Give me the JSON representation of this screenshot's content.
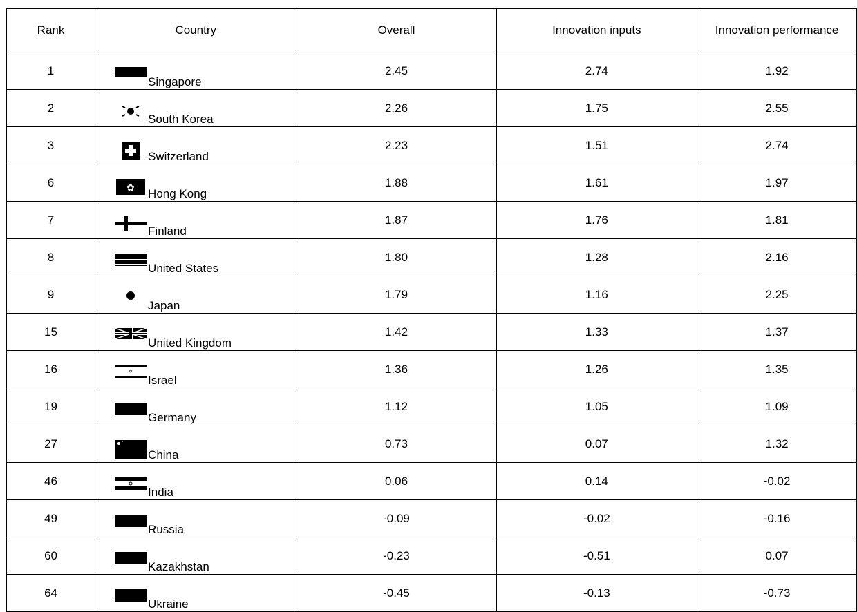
{
  "table": {
    "headers": [
      "Rank",
      "Country",
      "Overall",
      "Innovation inputs",
      "Innovation performance"
    ],
    "rows": [
      {
        "rank": "1",
        "country": "Singapore",
        "flag_icon": "singapore-flag-icon",
        "overall": "2.45",
        "inputs": "2.74",
        "performance": "1.92"
      },
      {
        "rank": "2",
        "country": "South Korea",
        "flag_icon": "south-korea-flag-icon",
        "overall": "2.26",
        "inputs": "1.75",
        "performance": "2.55"
      },
      {
        "rank": "3",
        "country": "Switzerland",
        "flag_icon": "switzerland-flag-icon",
        "overall": "2.23",
        "inputs": "1.51",
        "performance": "2.74"
      },
      {
        "rank": "6",
        "country": "Hong Kong",
        "flag_icon": "hong-kong-flag-icon",
        "overall": "1.88",
        "inputs": "1.61",
        "performance": "1.97"
      },
      {
        "rank": "7",
        "country": "Finland",
        "flag_icon": "finland-flag-icon",
        "overall": "1.87",
        "inputs": "1.76",
        "performance": "1.81"
      },
      {
        "rank": "8",
        "country": "United States",
        "flag_icon": "united-states-flag-icon",
        "overall": "1.80",
        "inputs": "1.28",
        "performance": "2.16"
      },
      {
        "rank": "9",
        "country": "Japan",
        "flag_icon": "japan-flag-icon",
        "overall": "1.79",
        "inputs": "1.16",
        "performance": "2.25"
      },
      {
        "rank": "15",
        "country": "United Kingdom",
        "flag_icon": "united-kingdom-flag-icon",
        "overall": "1.42",
        "inputs": "1.33",
        "performance": "1.37"
      },
      {
        "rank": "16",
        "country": "Israel",
        "flag_icon": "israel-flag-icon",
        "overall": "1.36",
        "inputs": "1.26",
        "performance": "1.35"
      },
      {
        "rank": "19",
        "country": "Germany",
        "flag_icon": "germany-flag-icon",
        "overall": "1.12",
        "inputs": "1.05",
        "performance": "1.09"
      },
      {
        "rank": "27",
        "country": "China",
        "flag_icon": "china-flag-icon",
        "overall": "0.73",
        "inputs": "0.07",
        "performance": "1.32"
      },
      {
        "rank": "46",
        "country": "India",
        "flag_icon": "india-flag-icon",
        "overall": "0.06",
        "inputs": "0.14",
        "performance": "-0.02"
      },
      {
        "rank": "49",
        "country": "Russia",
        "flag_icon": "russia-flag-icon",
        "overall": "-0.09",
        "inputs": "-0.02",
        "performance": "-0.16"
      },
      {
        "rank": "60",
        "country": "Kazakhstan",
        "flag_icon": "kazakhstan-flag-icon",
        "overall": "-0.23",
        "inputs": "-0.51",
        "performance": "0.07"
      },
      {
        "rank": "64",
        "country": "Ukraine",
        "flag_icon": "ukraine-flag-icon",
        "overall": "-0.45",
        "inputs": "-0.13",
        "performance": "-0.73"
      }
    ]
  }
}
